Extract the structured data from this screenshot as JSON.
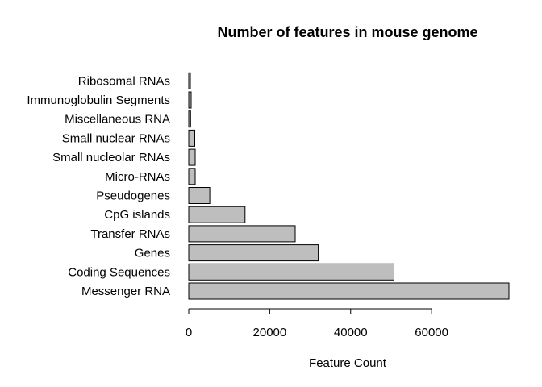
{
  "chart_data": {
    "type": "bar",
    "orientation": "horizontal",
    "title": "Number of features in mouse genome",
    "xlabel": "Feature Count",
    "ylabel": "",
    "categories": [
      "Messenger RNA",
      "Coding Sequences",
      "Genes",
      "Transfer RNAs",
      "CpG islands",
      "Pseudogenes",
      "Micro-RNAs",
      "Small nucleolar RNAs",
      "Small nuclear RNAs",
      "Miscellaneous RNA",
      "Immunoglobulin Segments",
      "Ribosomal RNAs"
    ],
    "values": [
      79100,
      50700,
      32000,
      26300,
      13900,
      5200,
      1600,
      1600,
      1500,
      450,
      600,
      400
    ],
    "xlim": [
      0,
      79100
    ],
    "xticks": [
      0,
      20000,
      40000,
      60000
    ],
    "bar_color": "#bebebe",
    "grid": false,
    "legend": "none"
  }
}
